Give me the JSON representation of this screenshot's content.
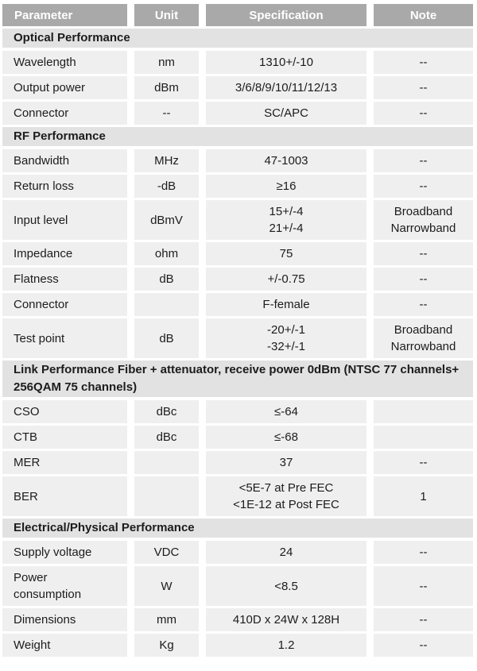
{
  "colors": {
    "header_bg": "#a9a9a9",
    "header_text": "#ffffff",
    "section_bg": "#e2e2e2",
    "row_bg": "#efefef",
    "text": "#1c1c1c",
    "page_bg": "#ffffff"
  },
  "table": {
    "columns": [
      "Parameter",
      "Unit",
      "Specification",
      "Note"
    ],
    "rows": [
      {
        "type": "section",
        "label": "Optical Performance"
      },
      {
        "type": "data",
        "parameter": [
          "Wavelength"
        ],
        "unit": [
          "nm"
        ],
        "specification": [
          "1310+/-10"
        ],
        "note": [
          "--"
        ]
      },
      {
        "type": "data",
        "parameter": [
          "Output power"
        ],
        "unit": [
          "dBm"
        ],
        "specification": [
          "3/6/8/9/10/11/12/13"
        ],
        "note": [
          "--"
        ]
      },
      {
        "type": "data",
        "parameter": [
          "Connector"
        ],
        "unit": [
          "--"
        ],
        "specification": [
          "SC/APC"
        ],
        "note": [
          "--"
        ]
      },
      {
        "type": "section",
        "label": "RF Performance"
      },
      {
        "type": "data",
        "parameter": [
          "Bandwidth"
        ],
        "unit": [
          "MHz"
        ],
        "specification": [
          "47-1003"
        ],
        "note": [
          "--"
        ]
      },
      {
        "type": "data",
        "parameter": [
          "Return loss"
        ],
        "unit": [
          "-dB"
        ],
        "specification": [
          "≥16"
        ],
        "note": [
          "--"
        ]
      },
      {
        "type": "data",
        "parameter": [
          "Input level"
        ],
        "unit": [
          "dBmV"
        ],
        "specification": [
          "15+/-4",
          "21+/-4"
        ],
        "note": [
          "Broadband",
          "Narrowband"
        ]
      },
      {
        "type": "data",
        "parameter": [
          "Impedance"
        ],
        "unit": [
          "ohm"
        ],
        "specification": [
          "75"
        ],
        "note": [
          "--"
        ]
      },
      {
        "type": "data",
        "parameter": [
          "Flatness"
        ],
        "unit": [
          "dB"
        ],
        "specification": [
          "+/-0.75"
        ],
        "note": [
          "--"
        ]
      },
      {
        "type": "data",
        "parameter": [
          "Connector"
        ],
        "unit": [
          ""
        ],
        "specification": [
          "F-female"
        ],
        "note": [
          "--"
        ]
      },
      {
        "type": "data",
        "parameter": [
          "Test point"
        ],
        "unit": [
          "dB"
        ],
        "specification": [
          "-20+/-1",
          "-32+/-1"
        ],
        "note": [
          "Broadband",
          "Narrowband"
        ]
      },
      {
        "type": "section",
        "label": "Link Performance Fiber + attenuator, receive power 0dBm (NTSC 77 channels+ 256QAM 75 channels)"
      },
      {
        "type": "data",
        "parameter": [
          "CSO"
        ],
        "unit": [
          "dBc"
        ],
        "specification": [
          "≤-64"
        ],
        "note": [
          ""
        ]
      },
      {
        "type": "data",
        "parameter": [
          "CTB"
        ],
        "unit": [
          "dBc"
        ],
        "specification": [
          "≤-68"
        ],
        "note": [
          ""
        ]
      },
      {
        "type": "data",
        "parameter": [
          "MER"
        ],
        "unit": [
          ""
        ],
        "specification": [
          "37"
        ],
        "note": [
          "--"
        ]
      },
      {
        "type": "data",
        "parameter": [
          "BER"
        ],
        "unit": [
          ""
        ],
        "specification": [
          "<5E-7 at Pre FEC",
          "<1E-12 at Post FEC"
        ],
        "note": [
          "1"
        ]
      },
      {
        "type": "section",
        "label": "Electrical/Physical Performance"
      },
      {
        "type": "data",
        "parameter": [
          "Supply voltage"
        ],
        "unit": [
          "VDC"
        ],
        "specification": [
          "24"
        ],
        "note": [
          "--"
        ]
      },
      {
        "type": "data",
        "parameter": [
          "Power",
          "consumption"
        ],
        "unit": [
          "W"
        ],
        "specification": [
          "<8.5"
        ],
        "note": [
          "--"
        ]
      },
      {
        "type": "data",
        "parameter": [
          "Dimensions"
        ],
        "unit": [
          "mm"
        ],
        "specification": [
          "410D x 24W x 128H"
        ],
        "note": [
          "--"
        ]
      },
      {
        "type": "data",
        "parameter": [
          "Weight"
        ],
        "unit": [
          "Kg"
        ],
        "specification": [
          "1.2"
        ],
        "note": [
          "--"
        ]
      }
    ]
  }
}
